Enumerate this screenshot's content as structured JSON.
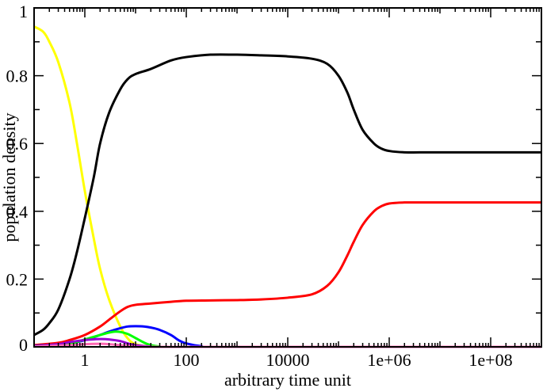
{
  "chart_data": {
    "type": "line",
    "title": "",
    "xlabel": "arbitrary time unit",
    "ylabel": "population density",
    "x_scale": "log",
    "xlim": [
      0.1,
      1000000000
    ],
    "ylim": [
      0,
      1
    ],
    "grid": false,
    "x_ticks": [
      {
        "value": 1,
        "label": "1"
      },
      {
        "value": 100,
        "label": "100"
      },
      {
        "value": 10000,
        "label": "10000"
      },
      {
        "value": 1000000,
        "label": "1e+06"
      },
      {
        "value": 100000000,
        "label": "1e+08"
      }
    ],
    "y_ticks": [
      {
        "value": 0,
        "label": "0"
      },
      {
        "value": 0.2,
        "label": "0.2"
      },
      {
        "value": 0.4,
        "label": "0.4"
      },
      {
        "value": 0.6,
        "label": "0.6"
      },
      {
        "value": 0.8,
        "label": "0.8"
      },
      {
        "value": 1,
        "label": "1"
      }
    ],
    "series": [
      {
        "color": "#ffff00",
        "points": [
          [
            0.1,
            0.945
          ],
          [
            0.15,
            0.93
          ],
          [
            0.2,
            0.9
          ],
          [
            0.3,
            0.84
          ],
          [
            0.5,
            0.72
          ],
          [
            0.7,
            0.6
          ],
          [
            1,
            0.46
          ],
          [
            1.5,
            0.32
          ],
          [
            2,
            0.23
          ],
          [
            3,
            0.14
          ],
          [
            5,
            0.06
          ],
          [
            7,
            0.025
          ],
          [
            10,
            0.008
          ],
          [
            20,
            0.001
          ],
          [
            100,
            0
          ],
          [
            1000000000,
            0
          ]
        ]
      },
      {
        "color": "#000000",
        "points": [
          [
            0.1,
            0.035
          ],
          [
            0.15,
            0.05
          ],
          [
            0.2,
            0.07
          ],
          [
            0.3,
            0.11
          ],
          [
            0.5,
            0.2
          ],
          [
            0.7,
            0.28
          ],
          [
            1,
            0.38
          ],
          [
            1.5,
            0.5
          ],
          [
            2,
            0.6
          ],
          [
            3,
            0.69
          ],
          [
            5,
            0.76
          ],
          [
            7,
            0.79
          ],
          [
            10,
            0.805
          ],
          [
            20,
            0.82
          ],
          [
            50,
            0.845
          ],
          [
            100,
            0.855
          ],
          [
            300,
            0.862
          ],
          [
            1000,
            0.862
          ],
          [
            3000,
            0.86
          ],
          [
            10000,
            0.857
          ],
          [
            30000,
            0.85
          ],
          [
            60000,
            0.835
          ],
          [
            100000,
            0.8
          ],
          [
            150000,
            0.75
          ],
          [
            200000,
            0.7
          ],
          [
            300000,
            0.64
          ],
          [
            500000,
            0.6
          ],
          [
            700000,
            0.585
          ],
          [
            1000000,
            0.578
          ],
          [
            2000000,
            0.574
          ],
          [
            10000000,
            0.574
          ],
          [
            1000000000,
            0.574
          ]
        ]
      },
      {
        "color": "#ff0000",
        "points": [
          [
            0.1,
            0.005
          ],
          [
            0.3,
            0.012
          ],
          [
            0.5,
            0.02
          ],
          [
            1,
            0.035
          ],
          [
            2,
            0.06
          ],
          [
            3,
            0.08
          ],
          [
            5,
            0.105
          ],
          [
            7,
            0.118
          ],
          [
            10,
            0.124
          ],
          [
            20,
            0.128
          ],
          [
            50,
            0.133
          ],
          [
            100,
            0.136
          ],
          [
            300,
            0.137
          ],
          [
            1000,
            0.138
          ],
          [
            3000,
            0.14
          ],
          [
            10000,
            0.145
          ],
          [
            30000,
            0.155
          ],
          [
            60000,
            0.18
          ],
          [
            100000,
            0.22
          ],
          [
            150000,
            0.27
          ],
          [
            200000,
            0.31
          ],
          [
            300000,
            0.36
          ],
          [
            500000,
            0.4
          ],
          [
            700000,
            0.415
          ],
          [
            1000000,
            0.423
          ],
          [
            2000000,
            0.426
          ],
          [
            10000000,
            0.426
          ],
          [
            1000000000,
            0.426
          ]
        ]
      },
      {
        "color": "#0000ff",
        "points": [
          [
            0.1,
            0.003
          ],
          [
            0.5,
            0.01
          ],
          [
            1,
            0.02
          ],
          [
            2,
            0.035
          ],
          [
            3,
            0.045
          ],
          [
            5,
            0.055
          ],
          [
            7,
            0.06
          ],
          [
            10,
            0.061
          ],
          [
            15,
            0.06
          ],
          [
            20,
            0.057
          ],
          [
            30,
            0.05
          ],
          [
            50,
            0.035
          ],
          [
            70,
            0.02
          ],
          [
            100,
            0.01
          ],
          [
            200,
            0.002
          ],
          [
            500,
            0
          ],
          [
            1000000000,
            0
          ]
        ]
      },
      {
        "color": "#00ff00",
        "points": [
          [
            0.1,
            0.002
          ],
          [
            0.5,
            0.01
          ],
          [
            1,
            0.022
          ],
          [
            2,
            0.035
          ],
          [
            3,
            0.042
          ],
          [
            4,
            0.045
          ],
          [
            5,
            0.044
          ],
          [
            7,
            0.038
          ],
          [
            10,
            0.026
          ],
          [
            15,
            0.012
          ],
          [
            20,
            0.005
          ],
          [
            30,
            0.001
          ],
          [
            50,
            0
          ],
          [
            1000000000,
            0
          ]
        ]
      },
      {
        "color": "#9400d3",
        "points": [
          [
            0.1,
            0.002
          ],
          [
            0.3,
            0.008
          ],
          [
            0.5,
            0.014
          ],
          [
            1,
            0.02
          ],
          [
            2,
            0.023
          ],
          [
            3,
            0.022
          ],
          [
            5,
            0.017
          ],
          [
            7,
            0.01
          ],
          [
            10,
            0.005
          ],
          [
            20,
            0.001
          ],
          [
            50,
            0
          ],
          [
            1000000000,
            0
          ]
        ]
      },
      {
        "color": "#ff69b4",
        "points": [
          [
            0.1,
            0.001
          ],
          [
            0.5,
            0.005
          ],
          [
            1,
            0.008
          ],
          [
            2,
            0.009
          ],
          [
            3,
            0.008
          ],
          [
            5,
            0.005
          ],
          [
            10,
            0.001
          ],
          [
            20,
            0
          ],
          [
            1000000000,
            0
          ]
        ]
      }
    ]
  }
}
